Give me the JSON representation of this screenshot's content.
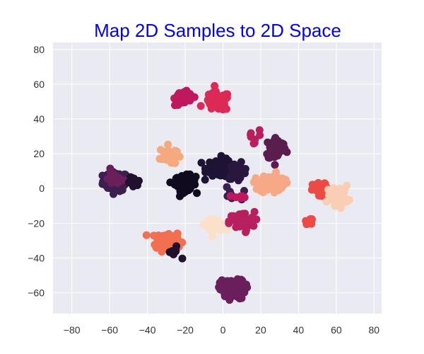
{
  "chart_data": {
    "type": "scatter",
    "title": "Map 2D Samples to 2D Space",
    "title_color": "#0000ff",
    "xlabel": "",
    "ylabel": "",
    "xlim": [
      -90,
      84
    ],
    "ylim": [
      -72,
      84
    ],
    "xticks": [
      -80,
      -60,
      -40,
      -20,
      0,
      20,
      40,
      60,
      80
    ],
    "yticks": [
      -60,
      -40,
      -20,
      0,
      20,
      40,
      60,
      80
    ],
    "grid": true,
    "legend": "none",
    "background": "#eaeaf2",
    "grid_color": "#ffffff",
    "clusters": [
      {
        "center": [
          -57,
          4
        ],
        "spread": [
          6,
          5
        ],
        "color": "#3b1f4e",
        "count": 70
      },
      {
        "center": [
          -58,
          6
        ],
        "spread": [
          5,
          4
        ],
        "color": "#6b1f5a",
        "count": 18
      },
      {
        "center": [
          -47,
          3
        ],
        "spread": [
          3,
          3
        ],
        "color": "#20112e",
        "count": 12
      },
      {
        "center": [
          -29,
          -30
        ],
        "spread": [
          6,
          5
        ],
        "color": "#f26f50",
        "count": 90
      },
      {
        "center": [
          -26,
          -37
        ],
        "spread": [
          3,
          3
        ],
        "color": "#20112e",
        "count": 10
      },
      {
        "center": [
          -29,
          19
        ],
        "spread": [
          4,
          5
        ],
        "color": "#f4a97e",
        "count": 30
      },
      {
        "center": [
          -20,
          3
        ],
        "spread": [
          5,
          4
        ],
        "color": "#0f0a1e",
        "count": 85
      },
      {
        "center": [
          -20,
          52
        ],
        "spread": [
          5,
          4
        ],
        "color": "#c0185f",
        "count": 45
      },
      {
        "center": [
          -3,
          50
        ],
        "spread": [
          6,
          5
        ],
        "color": "#db2a56",
        "count": 60
      },
      {
        "center": [
          -2,
          12
        ],
        "spread": [
          6,
          5
        ],
        "color": "#1e1335",
        "count": 70
      },
      {
        "center": [
          8,
          10
        ],
        "spread": [
          5,
          4
        ],
        "color": "#2a1740",
        "count": 30
      },
      {
        "center": [
          -4,
          -21
        ],
        "spread": [
          5,
          3
        ],
        "color": "#fbe0ca",
        "count": 40
      },
      {
        "center": [
          10,
          -19
        ],
        "spread": [
          6,
          5
        ],
        "color": "#b81f5e",
        "count": 55
      },
      {
        "center": [
          28,
          23
        ],
        "spread": [
          5,
          6
        ],
        "color": "#5a1e4e",
        "count": 60
      },
      {
        "center": [
          26,
          3
        ],
        "spread": [
          6,
          5
        ],
        "color": "#f6a986",
        "count": 85
      },
      {
        "center": [
          5,
          -58
        ],
        "spread": [
          6,
          5
        ],
        "color": "#6a1e5c",
        "count": 95
      },
      {
        "center": [
          52,
          -1
        ],
        "spread": [
          4,
          4
        ],
        "color": "#ec4a45",
        "count": 35
      },
      {
        "center": [
          61,
          -4
        ],
        "spread": [
          5,
          5
        ],
        "color": "#f9ceb4",
        "count": 60
      },
      {
        "center": [
          46,
          -19
        ],
        "spread": [
          2,
          1.5
        ],
        "color": "#ec4a45",
        "count": 12
      },
      {
        "center": [
          16,
          30
        ],
        "spread": [
          4,
          4
        ],
        "color": "#b81f5e",
        "count": 8
      },
      {
        "center": [
          4,
          -4
        ],
        "spread": [
          5,
          4
        ],
        "color": "#3b1f4e",
        "count": 10
      },
      {
        "center": [
          9,
          -5
        ],
        "spread": [
          3,
          3
        ],
        "color": "#c0185f",
        "count": 6
      }
    ]
  }
}
